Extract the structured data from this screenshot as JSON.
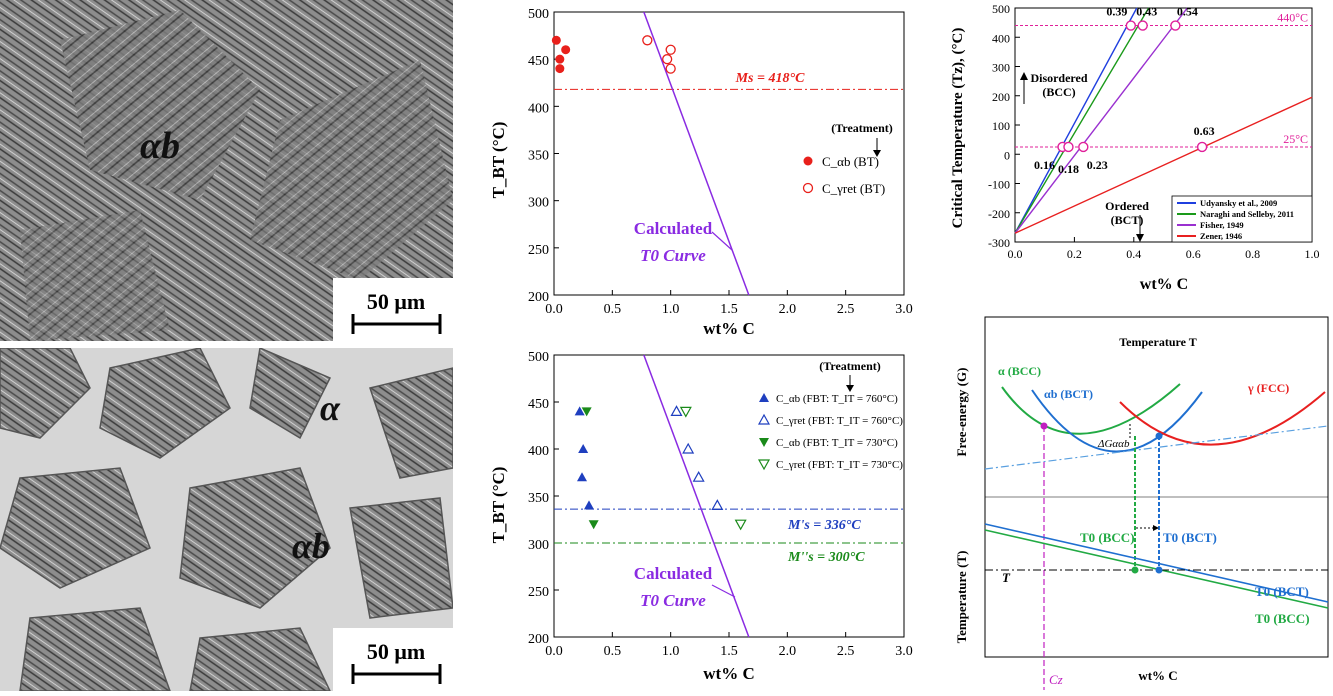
{
  "micrographs": {
    "top": {
      "phase_label": "αb",
      "scale_bar_label": "50 μm"
    },
    "bottom": {
      "phase_label_1": "α",
      "phase_label_2": "αb",
      "scale_bar_label": "50 μm"
    }
  },
  "chart_data": [
    {
      "type": "scatter",
      "id": "tbt_bt",
      "xlabel": "wt% C",
      "ylabel": "T_BT (°C)",
      "xlim": [
        0,
        3
      ],
      "ylim": [
        200,
        500
      ],
      "xticks": [
        "0.0",
        "0.5",
        "1.0",
        "1.5",
        "2.0",
        "2.5",
        "3.0"
      ],
      "yticks": [
        "200",
        "250",
        "300",
        "350",
        "400",
        "450",
        "500"
      ],
      "legend_title": "(Treatment)",
      "series": [
        {
          "name": "C_αb (BT)",
          "marker": "filled-circle",
          "color": "#e8201b",
          "points": [
            [
              0.02,
              470
            ],
            [
              0.05,
              450
            ],
            [
              0.1,
              460
            ],
            [
              0.05,
              440
            ]
          ]
        },
        {
          "name": "C_γret (BT)",
          "marker": "open-circle",
          "color": "#e8201b",
          "points": [
            [
              0.8,
              470
            ],
            [
              1.0,
              460
            ],
            [
              0.97,
              450
            ],
            [
              1.0,
              440
            ]
          ]
        }
      ],
      "t0_curve": {
        "label_1": "Calculated",
        "label_2": "T0 Curve",
        "points": [
          [
            0.77,
            500
          ],
          [
            1.67,
            200
          ]
        ],
        "color": "#8a2be2"
      },
      "ms_line": {
        "label": "Ms = 418°C",
        "value": 418,
        "color": "#e8201b"
      }
    },
    {
      "type": "scatter",
      "id": "tbt_fbt",
      "xlabel": "wt% C",
      "ylabel": "T_BT (°C)",
      "xlim": [
        0,
        3
      ],
      "ylim": [
        200,
        500
      ],
      "xticks": [
        "0.0",
        "0.5",
        "1.0",
        "1.5",
        "2.0",
        "2.5",
        "3.0"
      ],
      "yticks": [
        "200",
        "250",
        "300",
        "350",
        "400",
        "450",
        "500"
      ],
      "legend_title": "(Treatment)",
      "series": [
        {
          "name": "C_αb (FBT: T_IT = 760°C)",
          "marker": "filled-triangle-up",
          "color": "#1f3fbf",
          "points": [
            [
              0.22,
              440
            ],
            [
              0.25,
              400
            ],
            [
              0.24,
              370
            ],
            [
              0.3,
              340
            ]
          ]
        },
        {
          "name": "C_γret (FBT: T_IT = 760°C)",
          "marker": "open-triangle-up",
          "color": "#1f3fbf",
          "points": [
            [
              1.05,
              440
            ],
            [
              1.15,
              400
            ],
            [
              1.24,
              370
            ],
            [
              1.4,
              340
            ]
          ]
        },
        {
          "name": "C_αb (FBT: T_IT = 730°C)",
          "marker": "filled-triangle-down",
          "color": "#1a8a1a",
          "points": [
            [
              0.28,
              440
            ],
            [
              0.34,
              320
            ]
          ]
        },
        {
          "name": "C_γret (FBT: T_IT = 730°C)",
          "marker": "open-triangle-down",
          "color": "#1a8a1a",
          "points": [
            [
              1.13,
              440
            ],
            [
              1.6,
              320
            ]
          ]
        }
      ],
      "t0_curve": {
        "label_1": "Calculated",
        "label_2": "T0 Curve",
        "points": [
          [
            0.77,
            500
          ],
          [
            1.67,
            200
          ]
        ],
        "color": "#8a2be2"
      },
      "ms_prime_line": {
        "label": "M's = 336°C",
        "value": 336,
        "color": "#1f3fbf"
      },
      "ms_dprime_line": {
        "label": "M''s = 300°C",
        "value": 300,
        "color": "#1a8a1a"
      }
    },
    {
      "type": "line",
      "id": "critical_temp",
      "xlabel": "wt% C",
      "ylabel": "Critical Temperature (Tz), (°C)",
      "xlim": [
        0,
        1
      ],
      "ylim": [
        -300,
        500
      ],
      "xticks": [
        "0.0",
        "0.2",
        "0.4",
        "0.6",
        "0.8",
        "1.0"
      ],
      "yticks": [
        "-300",
        "-200",
        "-100",
        "0",
        "100",
        "200",
        "300",
        "400",
        "500"
      ],
      "series": [
        {
          "name": "Udyansky et al., 2009",
          "color": "#1f3fdf",
          "points": [
            [
              0,
              -270
            ],
            [
              0.41,
              500
            ]
          ]
        },
        {
          "name": "Naraghi and Selleby, 2011",
          "color": "#1a9a1a",
          "points": [
            [
              0,
              -270
            ],
            [
              0.45,
              500
            ]
          ]
        },
        {
          "name": "Fisher, 1949",
          "color": "#9a30d0",
          "points": [
            [
              0,
              -270
            ],
            [
              0.58,
              500
            ]
          ]
        },
        {
          "name": "Zener, 1946",
          "color": "#e82020",
          "points": [
            [
              0,
              -270
            ],
            [
              1.0,
              195
            ]
          ]
        }
      ],
      "hlines": [
        {
          "value": 440,
          "label": "440°C",
          "color": "#e0209a"
        },
        {
          "value": 25,
          "label": "25°C",
          "color": "#e0209a"
        }
      ],
      "markers": [
        {
          "x": 0.39,
          "y": 440,
          "label": "0.39"
        },
        {
          "x": 0.43,
          "y": 440,
          "label": "0.43"
        },
        {
          "x": 0.54,
          "y": 440,
          "label": "0.54"
        },
        {
          "x": 0.16,
          "y": 25,
          "label": "0.16"
        },
        {
          "x": 0.18,
          "y": 25,
          "label": "0.18"
        },
        {
          "x": 0.23,
          "y": 25,
          "label": "0.23"
        },
        {
          "x": 0.63,
          "y": 25,
          "label": "0.63"
        }
      ],
      "annotations": {
        "disordered_1": "Disordered",
        "disordered_2": "(BCC)",
        "ordered_1": "Ordered",
        "ordered_2": "(BCT)"
      }
    }
  ],
  "schematic": {
    "title": "Temperature T",
    "ylabel_top": "Free-energy (G)",
    "ylabel_bottom": "Temperature (T)",
    "xlabel": "wt% C",
    "alpha_bcc": "α (BCC)",
    "alpha_b_bct": "αb (BCT)",
    "gamma_fcc": "γ (FCC)",
    "delta_g": "ΔGααb",
    "t0_bcc_mid": "T0 (BCC)",
    "t0_bct_mid": "T0 (BCT)",
    "t0_bct_right": "T0 (BCT)",
    "t0_bcc_right": "T0 (BCC)",
    "t_label": "T",
    "cz_label": "Cz",
    "colors": {
      "bcc": "#22aa44",
      "bct": "#1f6fd0",
      "fcc": "#e82020",
      "cz": "#c020c0"
    }
  }
}
